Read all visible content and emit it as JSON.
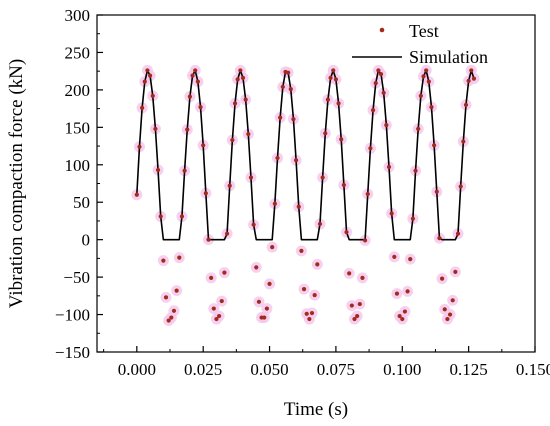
{
  "chart_data": {
    "type": "line",
    "title": "",
    "xlabel": "Time (s)",
    "ylabel": "Vibration compaction force (kN)",
    "xlim": [
      -0.015,
      0.15
    ],
    "ylim": [
      -150,
      300
    ],
    "xticks": [
      "0.000",
      "0.025",
      "0.050",
      "0.075",
      "0.100",
      "0.125",
      "0.150"
    ],
    "yticks": [
      "−150",
      "−100",
      "−50",
      "0",
      "50",
      "100",
      "150",
      "200",
      "250",
      "300"
    ],
    "legend": {
      "position": "top-right",
      "entries": [
        "Test",
        "Simulation"
      ]
    },
    "series": [
      {
        "name": "Test",
        "style": "scatter",
        "color": "#a52a1e",
        "halo_color": "#f4c8ec",
        "x": [
          0.0,
          0.001,
          0.002,
          0.003,
          0.004,
          0.005,
          0.006,
          0.007,
          0.008,
          0.009,
          0.01,
          0.011,
          0.012,
          0.013,
          0.014,
          0.015,
          0.016,
          0.017,
          0.018,
          0.019,
          0.02,
          0.021,
          0.022,
          0.023,
          0.024,
          0.025,
          0.026,
          0.027,
          0.028,
          0.029,
          0.03,
          0.031,
          0.032,
          0.033,
          0.034,
          0.035,
          0.036,
          0.037,
          0.038,
          0.039,
          0.04,
          0.041,
          0.042,
          0.043,
          0.044,
          0.045,
          0.046,
          0.047,
          0.048,
          0.049,
          0.05,
          0.051,
          0.052,
          0.053,
          0.054,
          0.055,
          0.056,
          0.057,
          0.058,
          0.059,
          0.06,
          0.061,
          0.062,
          0.063,
          0.064,
          0.065,
          0.066,
          0.067,
          0.068,
          0.069,
          0.07,
          0.071,
          0.072,
          0.073,
          0.074,
          0.075,
          0.076,
          0.077,
          0.078,
          0.079,
          0.08,
          0.081,
          0.082,
          0.083,
          0.084,
          0.085,
          0.086,
          0.087,
          0.088,
          0.089,
          0.09,
          0.091,
          0.092,
          0.093,
          0.094,
          0.095,
          0.096,
          0.097,
          0.098,
          0.099,
          0.1,
          0.101,
          0.102,
          0.103,
          0.104,
          0.105,
          0.106,
          0.107,
          0.108,
          0.109,
          0.11,
          0.111,
          0.112,
          0.113,
          0.114,
          0.115,
          0.116,
          0.117,
          0.118,
          0.119,
          0.12,
          0.121,
          0.122,
          0.123,
          0.124,
          0.125,
          0.126,
          0.127
        ],
        "y": [
          60,
          124,
          176,
          211,
          226,
          219,
          192,
          148,
          93,
          31,
          -28,
          -77,
          -108,
          -104,
          -95,
          -68,
          -24,
          31,
          92,
          147,
          191,
          219,
          226,
          211,
          177,
          126,
          62,
          0,
          -51,
          -92,
          -106,
          -102,
          -82,
          -44,
          8,
          72,
          133,
          182,
          214,
          226,
          216,
          187,
          141,
          83,
          20,
          -37,
          -83,
          -104,
          -104,
          -92,
          -59,
          -10,
          48,
          109,
          163,
          204,
          224,
          223,
          201,
          161,
          106,
          44,
          -15,
          -66,
          -99,
          -106,
          -98,
          -74,
          -33,
          21,
          83,
          142,
          187,
          216,
          226,
          214,
          182,
          134,
          73,
          10,
          -45,
          -88,
          -106,
          -102,
          -86,
          -51,
          -1,
          61,
          122,
          173,
          209,
          226,
          221,
          196,
          153,
          97,
          35,
          -23,
          -72,
          -102,
          -106,
          -96,
          -69,
          -26,
          28,
          92,
          148,
          192,
          218,
          226,
          211,
          177,
          126,
          64,
          2,
          -52,
          -93,
          -106,
          -100,
          -81,
          -43,
          8,
          71,
          131,
          180,
          212,
          226,
          215
        ]
      },
      {
        "name": "Simulation",
        "style": "line",
        "color": "#000000",
        "x": [
          0.0,
          0.001,
          0.002,
          0.003,
          0.004,
          0.005,
          0.006,
          0.007,
          0.008,
          0.009,
          0.01,
          0.011,
          0.012,
          0.013,
          0.014,
          0.015,
          0.016,
          0.017,
          0.018,
          0.019,
          0.02,
          0.021,
          0.022,
          0.023,
          0.024,
          0.025,
          0.026,
          0.027,
          0.028,
          0.029,
          0.03,
          0.031,
          0.032,
          0.033,
          0.034,
          0.035,
          0.036,
          0.037,
          0.038,
          0.039,
          0.04,
          0.041,
          0.042,
          0.043,
          0.044,
          0.045,
          0.046,
          0.047,
          0.048,
          0.049,
          0.05,
          0.051,
          0.052,
          0.053,
          0.054,
          0.055,
          0.056,
          0.057,
          0.058,
          0.059,
          0.06,
          0.061,
          0.062,
          0.063,
          0.064,
          0.065,
          0.066,
          0.067,
          0.068,
          0.069,
          0.07,
          0.071,
          0.072,
          0.073,
          0.074,
          0.075,
          0.076,
          0.077,
          0.078,
          0.079,
          0.08,
          0.081,
          0.082,
          0.083,
          0.084,
          0.085,
          0.086,
          0.087,
          0.088,
          0.089,
          0.09,
          0.091,
          0.092,
          0.093,
          0.094,
          0.095,
          0.096,
          0.097,
          0.098,
          0.099,
          0.1,
          0.101,
          0.102,
          0.103,
          0.104,
          0.105,
          0.106,
          0.107,
          0.108,
          0.109,
          0.11,
          0.111,
          0.112,
          0.113,
          0.114,
          0.115,
          0.116,
          0.117,
          0.118,
          0.119,
          0.12,
          0.121,
          0.122,
          0.123,
          0.124,
          0.125,
          0.126,
          0.127
        ],
        "y": [
          60,
          124,
          176,
          211,
          226,
          219,
          192,
          148,
          93,
          31,
          0,
          0,
          0,
          0,
          0,
          0,
          0,
          31,
          92,
          147,
          191,
          219,
          226,
          211,
          177,
          126,
          62,
          0,
          0,
          0,
          0,
          0,
          0,
          0,
          8,
          72,
          133,
          182,
          214,
          226,
          216,
          187,
          141,
          83,
          20,
          0,
          0,
          0,
          0,
          0,
          0,
          0,
          48,
          109,
          163,
          204,
          224,
          223,
          201,
          161,
          106,
          44,
          0,
          0,
          0,
          0,
          0,
          0,
          0,
          21,
          83,
          142,
          187,
          216,
          226,
          214,
          182,
          134,
          73,
          10,
          0,
          0,
          0,
          0,
          0,
          0,
          0,
          61,
          122,
          173,
          209,
          226,
          221,
          196,
          153,
          97,
          35,
          0,
          0,
          0,
          0,
          0,
          0,
          0,
          28,
          92,
          148,
          192,
          218,
          226,
          211,
          177,
          126,
          64,
          2,
          0,
          0,
          0,
          0,
          0,
          0,
          8,
          71,
          131,
          180,
          212,
          226,
          215
        ]
      }
    ],
    "grid": false
  }
}
